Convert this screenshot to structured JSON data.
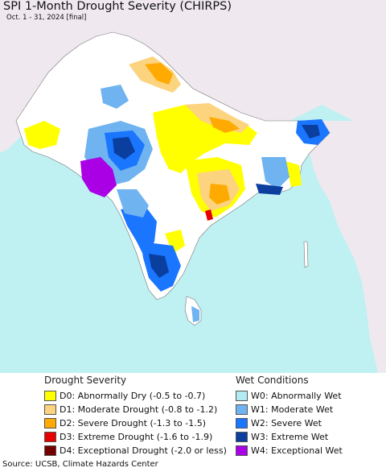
{
  "title": "SPI 1-Month Drought Severity (CHIRPS)",
  "subtitle": "Oct. 1 - 31, 2024 [final]",
  "colors": {
    "ocean": "#bff0f2",
    "land_outside": "#efe9ef",
    "land_neutral": "#ffffff",
    "d0": "#ffff00",
    "d1": "#fcd37f",
    "d2": "#ffaa00",
    "d3": "#e60000",
    "d4": "#730000",
    "w0": "#b2ebf2",
    "w1": "#6fb3f0",
    "w2": "#1a75ff",
    "w3": "#0a3fa0",
    "w4": "#aa00e6"
  },
  "legend": {
    "drought": {
      "heading": "Drought Severity",
      "items": [
        {
          "label": "D0: Abnormally Dry (-0.5 to -0.7)",
          "color": "#ffff00"
        },
        {
          "label": "D1: Moderate Drought (-0.8 to -1.2)",
          "color": "#fcd37f"
        },
        {
          "label": "D2: Severe Drought (-1.3 to -1.5)",
          "color": "#ffaa00"
        },
        {
          "label": "D3: Extreme Drought (-1.6 to -1.9)",
          "color": "#e60000"
        },
        {
          "label": "D4: Exceptional Drought (-2.0 or less)",
          "color": "#730000"
        }
      ]
    },
    "wet": {
      "heading": "Wet Conditions",
      "items": [
        {
          "label": "W0: Abnormally Wet",
          "color": "#b2ebf2"
        },
        {
          "label": "W1: Moderate Wet",
          "color": "#6fb3f0"
        },
        {
          "label": "W2: Severe Wet",
          "color": "#1a75ff"
        },
        {
          "label": "W3: Extreme Wet",
          "color": "#0a3fa0"
        },
        {
          "label": "W4: Exceptional Wet",
          "color": "#aa00e6"
        }
      ]
    }
  },
  "source": "Source: UCSB, Climate Hazards Center"
}
